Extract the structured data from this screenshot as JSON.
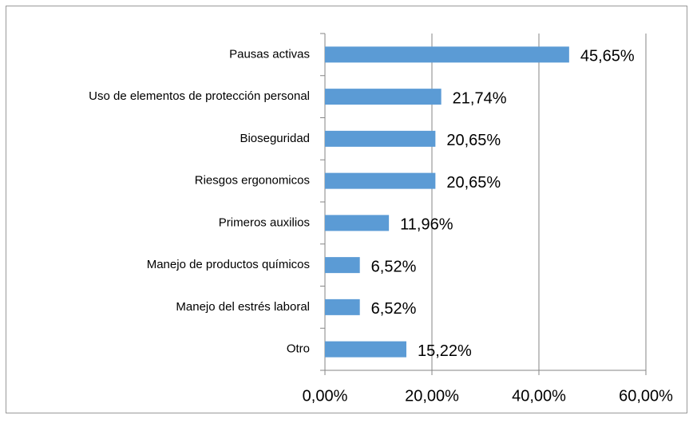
{
  "chart_data": {
    "type": "bar",
    "orientation": "horizontal",
    "categories": [
      "Pausas activas",
      "Uso de elementos de protección personal",
      "Bioseguridad",
      "Riesgos ergonomicos",
      "Primeros auxilios",
      "Manejo de productos químicos",
      "Manejo del estrés laboral",
      "Otro"
    ],
    "values": [
      45.65,
      21.74,
      20.65,
      20.65,
      11.96,
      6.52,
      6.52,
      15.22
    ],
    "value_labels": [
      "45,65%",
      "21,74%",
      "20,65%",
      "20,65%",
      "11,96%",
      "6,52%",
      "6,52%",
      "15,22%"
    ],
    "color": "#5b9bd5",
    "xlim": [
      0,
      60
    ],
    "xticks": [
      {
        "value": 0,
        "label": "0,00%"
      },
      {
        "value": 20,
        "label": "20,00%"
      },
      {
        "value": 40,
        "label": "40,00%"
      },
      {
        "value": 60,
        "label": "60,00%"
      }
    ],
    "grid": true
  }
}
